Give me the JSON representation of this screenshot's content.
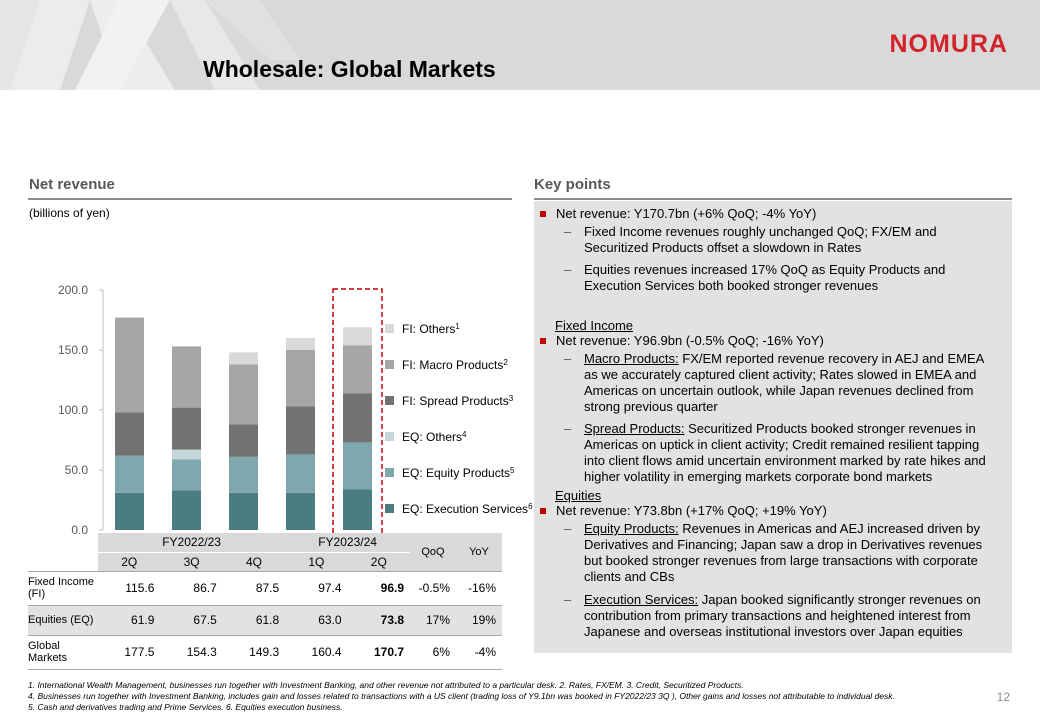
{
  "header": {
    "title": "Wholesale: Global Markets",
    "logo": "NOMURA"
  },
  "left": {
    "section_title": "Net revenue",
    "unit": "(billions of yen)"
  },
  "right": {
    "section_title": "Key points"
  },
  "chart_data": {
    "type": "bar",
    "stacked": true,
    "categories": [
      "2Q",
      "3Q",
      "4Q",
      "1Q",
      "2Q"
    ],
    "ylim": [
      0,
      200
    ],
    "yticks": [
      "0.0",
      "50.0",
      "100.0",
      "150.0",
      "200.0"
    ],
    "series": [
      {
        "name": "EQ: Execution Services",
        "superscript": "6",
        "color": "#4a7c82",
        "values": [
          31,
          33,
          31,
          31,
          34
        ]
      },
      {
        "name": "EQ: Equity Products",
        "superscript": "5",
        "color": "#7ea8ad",
        "values": [
          31,
          26,
          30,
          32,
          39
        ]
      },
      {
        "name": "EQ: Others",
        "superscript": "4",
        "color": "#c5d7da",
        "values": [
          0,
          8,
          0,
          0,
          0
        ]
      },
      {
        "name": "FI: Spread Products",
        "superscript": "3",
        "color": "#727272",
        "values": [
          36,
          35,
          27,
          40,
          41
        ]
      },
      {
        "name": "FI: Macro Products",
        "superscript": "2",
        "color": "#a6a6a6",
        "values": [
          79,
          51,
          50,
          47,
          40
        ]
      },
      {
        "name": "FI: Others",
        "superscript": "1",
        "color": "#d9d9d9",
        "values": [
          0,
          0,
          10,
          10,
          15
        ]
      }
    ],
    "highlight_index": 4
  },
  "table": {
    "group_fy2223": "FY2022/23",
    "group_fy2324": "FY2023/24",
    "qoq": "QoQ",
    "yoy": "YoY",
    "quarters": [
      "2Q",
      "3Q",
      "4Q",
      "1Q",
      "2Q"
    ],
    "rows": [
      {
        "label": "Fixed Income (FI)",
        "values": [
          "115.6",
          "86.7",
          "87.5",
          "97.4",
          "96.9"
        ],
        "qoq": "-0.5%",
        "yoy": "-16%"
      },
      {
        "label": "Equities (EQ)",
        "values": [
          "61.9",
          "67.5",
          "61.8",
          "63.0",
          "73.8"
        ],
        "qoq": "17%",
        "yoy": "19%"
      },
      {
        "label": "Global Markets",
        "values": [
          "177.5",
          "154.3",
          "149.3",
          "160.4",
          "170.7"
        ],
        "qoq": "6%",
        "yoy": "-4%"
      }
    ]
  },
  "keypoints": {
    "net_revenue": "Net revenue: Y170.7bn (+6% QoQ; -4% YoY)",
    "nr_sub1": "Fixed Income revenues roughly unchanged QoQ; FX/EM and Securitized Products offset a slowdown in Rates",
    "nr_sub2": "Equities revenues increased 17% QoQ as Equity Products and Execution Services both booked stronger revenues",
    "fi_head": "Fixed Income",
    "fi_net": "Net revenue: Y96.9bn (-0.5% QoQ; -16% YoY)",
    "fi_macro_label": "Macro Products:",
    "fi_macro_text": " FX/EM reported revenue recovery in AEJ and EMEA as we accurately captured client activity; Rates slowed in EMEA and Americas on uncertain outlook, while Japan revenues declined from strong previous quarter",
    "fi_spread_label": "Spread Products:",
    "fi_spread_text": " Securitized Products booked stronger revenues in Americas on uptick in client activity; Credit remained resilient tapping into client flows amid uncertain environment marked by rate hikes and higher volatility in emerging markets corporate bond markets",
    "eq_head": "Equities",
    "eq_net": "Net revenue: Y73.8bn (+17% QoQ; +19% YoY)",
    "eq_prod_label": "Equity Products:",
    "eq_prod_text": " Revenues in Americas and AEJ increased driven by Derivatives and Financing; Japan saw a drop in Derivatives revenues but booked stronger revenues from large transactions with corporate clients and CBs",
    "eq_exec_label": "Execution Services:",
    "eq_exec_text": " Japan booked significantly stronger revenues on contribution from primary transactions and heightened interest from Japanese and overseas institutional investors over Japan equities"
  },
  "footnotes": {
    "line1": "1.   International Wealth Management, businesses run together with Investment Banking, and other revenue not attributed to a particular desk.     2.   Rates, FX/EM.     3.   Credit, Securitized Products.",
    "line2": "4.   Businesses run together with Investment Banking, includes gain and losses related to transactions with a US client (trading loss of Y9.1bn was booked in FY2022/23 3Q ), Other gains and losses not attributable to individual desk.",
    "line3": "5.   Cash and derivatives trading and Prime Services.      6.   Equities execution business."
  },
  "page_number": "12"
}
